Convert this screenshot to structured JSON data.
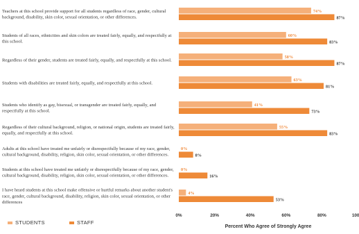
{
  "chart_data": {
    "type": "bar",
    "orientation": "horizontal",
    "categories": [
      "Teachers at this school provide support for all students regardless of race, gender, cultural background, disability, skin color, sexual orientation, or other differences.",
      "Students of all races, ethnicities and skin colors are treated fairly, equally, and respectfully at this school.",
      "Regardless of their gender, students are treated fairly, equally, and respectfully at this school.",
      "Students with disabilities are treated fairly, equally, and respectfully at this school.",
      "Students who identify as gay, bisexual, or transgender are treated fairly, equally, and respectfully at this school.",
      "Regardless of their cultural background, religion, or national origin, students are treated fairly, equally, and respectfully at this school.",
      "Adults at this school have treated me unfairly or disrespectfully because of my race, gender, cultural background, disability, religion, skin color, sexual orientation, or other differences.",
      "Students at this school have treated me unfairly or disrespectfully because of my race, gender, cultural background, disability, religion, skin color, sexual orientation, or other differences.",
      "I have heard students at this school make offensive or hurtful remarks about another student's race, gender, cultural background, disability, religion, skin color, sexual orientation, or other differences"
    ],
    "series": [
      {
        "name": "STUDENTS",
        "color": "#f5b07a",
        "values": [
          74,
          60,
          58,
          63,
          41,
          55,
          0,
          0,
          4
        ]
      },
      {
        "name": "STAFF",
        "color": "#ee8a38",
        "values": [
          87,
          83,
          87,
          81,
          73,
          83,
          8,
          16,
          53
        ]
      }
    ],
    "value_labels": {
      "STUDENTS": [
        "74%",
        "60%",
        "58%",
        "63%",
        "41%",
        "55%",
        "0%",
        "0%",
        "4%"
      ],
      "STAFF": [
        "87%",
        "83%",
        "87%",
        "81%",
        "73%",
        "83%",
        "8%",
        "16%",
        "53%"
      ]
    },
    "xlim": [
      0,
      100
    ],
    "xticks": [
      "0%",
      "20%",
      "40%",
      "60%",
      "80%",
      "100%"
    ],
    "xlabel": "Percent Who Agree of Strongly Agree",
    "ylabel": "",
    "grid": false,
    "legend_position": "bottom-left"
  }
}
